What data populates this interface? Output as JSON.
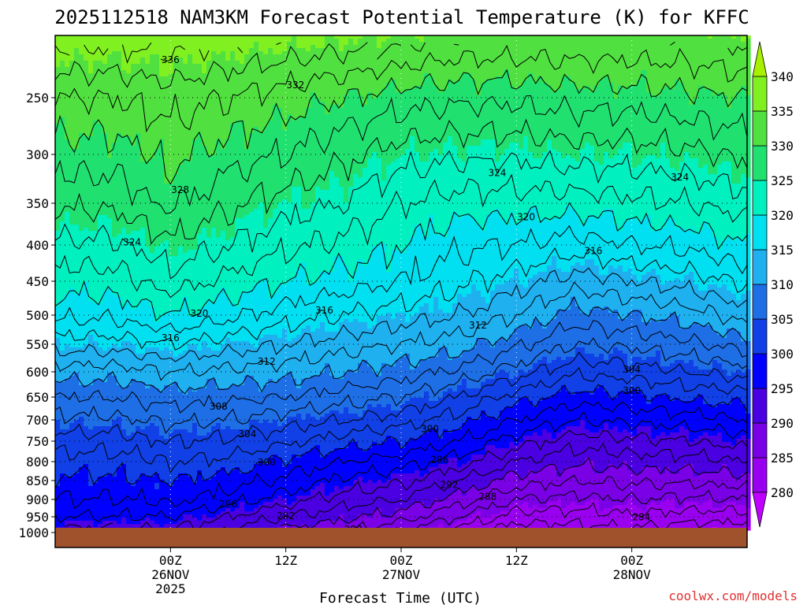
{
  "chart_data": {
    "type": "heatmap",
    "title": "2025112518 NAM3KM Forecast Potential Temperature (K) for KFFC",
    "xlabel": "Forecast Time (UTC)",
    "ylabel": "",
    "credit": "coolwx.com/models",
    "x_range_hours": [
      -6,
      66
    ],
    "y_range_hpa": [
      1000,
      200
    ],
    "grid": "dotted",
    "y_ticks": [
      {
        "value": 250,
        "label": "250"
      },
      {
        "value": 300,
        "label": "300"
      },
      {
        "value": 350,
        "label": "350"
      },
      {
        "value": 400,
        "label": "400"
      },
      {
        "value": 450,
        "label": "450"
      },
      {
        "value": 500,
        "label": "500"
      },
      {
        "value": 550,
        "label": "550"
      },
      {
        "value": 600,
        "label": "600"
      },
      {
        "value": 650,
        "label": "650"
      },
      {
        "value": 700,
        "label": "700"
      },
      {
        "value": 750,
        "label": "750"
      },
      {
        "value": 800,
        "label": "800"
      },
      {
        "value": 850,
        "label": "850"
      },
      {
        "value": 900,
        "label": "900"
      },
      {
        "value": 950,
        "label": "950"
      },
      {
        "value": 1000,
        "label": "1000"
      }
    ],
    "x_ticks": [
      {
        "hour": 6,
        "lines": [
          "00Z",
          "26NOV",
          "2025"
        ]
      },
      {
        "hour": 18,
        "lines": [
          "12Z"
        ]
      },
      {
        "hour": 30,
        "lines": [
          "00Z",
          "27NOV"
        ]
      },
      {
        "hour": 42,
        "lines": [
          "12Z"
        ]
      },
      {
        "hour": 54,
        "lines": [
          "00Z",
          "28NOV"
        ]
      }
    ],
    "colorbar": {
      "levels": [
        280,
        285,
        290,
        295,
        300,
        305,
        310,
        315,
        320,
        325,
        330,
        335,
        340
      ],
      "labels": [
        "280",
        "285",
        "290",
        "295",
        "300",
        "305",
        "310",
        "315",
        "320",
        "325",
        "330",
        "335",
        "340"
      ],
      "colors": [
        "#c000ff",
        "#9a00f0",
        "#7a00e6",
        "#4a00e0",
        "#0000ff",
        "#1040e6",
        "#1e6ee6",
        "#1fb0f0",
        "#00e0f0",
        "#00f0c0",
        "#20e070",
        "#50e040",
        "#80f020",
        "#a6f000"
      ]
    },
    "theta_profiles": [
      {
        "hour": 0,
        "levels": [
          [
            1000,
            293
          ],
          [
            950,
            296
          ],
          [
            900,
            298
          ],
          [
            850,
            299.5
          ],
          [
            800,
            301
          ],
          [
            750,
            303
          ],
          [
            700,
            305.5
          ],
          [
            650,
            308
          ],
          [
            600,
            311
          ],
          [
            550,
            315
          ],
          [
            500,
            318.5
          ],
          [
            450,
            321
          ],
          [
            400,
            323.5
          ],
          [
            350,
            326.5
          ],
          [
            300,
            329
          ],
          [
            250,
            332
          ],
          [
            200,
            337
          ]
        ]
      },
      {
        "hour": 6,
        "levels": [
          [
            1000,
            293.5
          ],
          [
            950,
            296
          ],
          [
            900,
            298.5
          ],
          [
            850,
            300
          ],
          [
            800,
            302
          ],
          [
            750,
            304
          ],
          [
            700,
            306.5
          ],
          [
            650,
            309
          ],
          [
            600,
            312
          ],
          [
            550,
            316
          ],
          [
            500,
            320
          ],
          [
            450,
            323
          ],
          [
            400,
            325.5
          ],
          [
            350,
            328.5
          ],
          [
            300,
            330.5
          ],
          [
            250,
            333
          ],
          [
            200,
            337
          ]
        ]
      },
      {
        "hour": 12,
        "levels": [
          [
            1000,
            291.5
          ],
          [
            950,
            294
          ],
          [
            900,
            297
          ],
          [
            850,
            299
          ],
          [
            800,
            301.5
          ],
          [
            750,
            303.5
          ],
          [
            700,
            306
          ],
          [
            650,
            308.5
          ],
          [
            600,
            311.5
          ],
          [
            550,
            315
          ],
          [
            500,
            318.5
          ],
          [
            450,
            321.5
          ],
          [
            400,
            324
          ],
          [
            350,
            326.5
          ],
          [
            300,
            329
          ],
          [
            250,
            332
          ],
          [
            200,
            336.5
          ]
        ]
      },
      {
        "hour": 18,
        "levels": [
          [
            1000,
            289
          ],
          [
            950,
            292
          ],
          [
            900,
            295
          ],
          [
            850,
            297.5
          ],
          [
            800,
            299.5
          ],
          [
            750,
            302.5
          ],
          [
            700,
            305
          ],
          [
            650,
            308
          ],
          [
            600,
            311
          ],
          [
            550,
            314
          ],
          [
            500,
            317
          ],
          [
            450,
            320
          ],
          [
            400,
            322.5
          ],
          [
            350,
            325
          ],
          [
            300,
            328
          ],
          [
            250,
            331
          ],
          [
            200,
            336
          ]
        ]
      },
      {
        "hour": 24,
        "levels": [
          [
            1000,
            288
          ],
          [
            950,
            290.5
          ],
          [
            900,
            293
          ],
          [
            850,
            295.5
          ],
          [
            800,
            298
          ],
          [
            750,
            301
          ],
          [
            700,
            304
          ],
          [
            650,
            307
          ],
          [
            600,
            310
          ],
          [
            550,
            313
          ],
          [
            500,
            316
          ],
          [
            450,
            319
          ],
          [
            400,
            321.5
          ],
          [
            350,
            324
          ],
          [
            300,
            326.5
          ],
          [
            250,
            330
          ],
          [
            200,
            335.5
          ]
        ]
      },
      {
        "hour": 30,
        "levels": [
          [
            1000,
            285.5
          ],
          [
            950,
            289
          ],
          [
            900,
            292
          ],
          [
            850,
            294.5
          ],
          [
            800,
            297
          ],
          [
            750,
            300
          ],
          [
            700,
            303
          ],
          [
            650,
            306
          ],
          [
            600,
            309
          ],
          [
            550,
            312
          ],
          [
            500,
            315
          ],
          [
            450,
            318
          ],
          [
            400,
            320
          ],
          [
            350,
            322
          ],
          [
            300,
            325
          ],
          [
            250,
            329
          ],
          [
            200,
            335
          ]
        ]
      },
      {
        "hour": 36,
        "levels": [
          [
            1000,
            283
          ],
          [
            950,
            286
          ],
          [
            900,
            289
          ],
          [
            850,
            292
          ],
          [
            800,
            295
          ],
          [
            750,
            298
          ],
          [
            700,
            301
          ],
          [
            650,
            304
          ],
          [
            600,
            307.5
          ],
          [
            550,
            311
          ],
          [
            500,
            314
          ],
          [
            450,
            316.5
          ],
          [
            400,
            318.5
          ],
          [
            350,
            321
          ],
          [
            300,
            324.5
          ],
          [
            250,
            328.5
          ],
          [
            200,
            334
          ]
        ]
      },
      {
        "hour": 42,
        "levels": [
          [
            1000,
            280.5
          ],
          [
            950,
            283
          ],
          [
            900,
            286
          ],
          [
            850,
            289
          ],
          [
            800,
            292
          ],
          [
            750,
            295
          ],
          [
            700,
            298
          ],
          [
            650,
            301
          ],
          [
            600,
            305
          ],
          [
            550,
            308.5
          ],
          [
            500,
            312
          ],
          [
            450,
            315
          ],
          [
            400,
            318
          ],
          [
            350,
            321
          ],
          [
            300,
            324.5
          ],
          [
            250,
            328.5
          ],
          [
            200,
            334
          ]
        ]
      },
      {
        "hour": 48,
        "levels": [
          [
            1000,
            280.5
          ],
          [
            950,
            283
          ],
          [
            900,
            285.5
          ],
          [
            850,
            288
          ],
          [
            800,
            290.5
          ],
          [
            750,
            293
          ],
          [
            700,
            296
          ],
          [
            650,
            299
          ],
          [
            600,
            302.5
          ],
          [
            550,
            306
          ],
          [
            500,
            309
          ],
          [
            450,
            313
          ],
          [
            400,
            317
          ],
          [
            350,
            321
          ],
          [
            300,
            325
          ],
          [
            250,
            329
          ],
          [
            200,
            334
          ]
        ]
      },
      {
        "hour": 54,
        "levels": [
          [
            1000,
            281.5
          ],
          [
            950,
            283.5
          ],
          [
            900,
            286
          ],
          [
            850,
            288.5
          ],
          [
            800,
            291
          ],
          [
            750,
            293.5
          ],
          [
            700,
            296.5
          ],
          [
            650,
            299.5
          ],
          [
            600,
            303
          ],
          [
            550,
            306.5
          ],
          [
            500,
            310
          ],
          [
            450,
            314
          ],
          [
            400,
            318
          ],
          [
            350,
            321.5
          ],
          [
            300,
            325
          ],
          [
            250,
            329
          ],
          [
            200,
            334
          ]
        ]
      },
      {
        "hour": 60,
        "levels": [
          [
            1000,
            280.5
          ],
          [
            950,
            283
          ],
          [
            900,
            285.5
          ],
          [
            850,
            288.5
          ],
          [
            800,
            291
          ],
          [
            750,
            294
          ],
          [
            700,
            297
          ],
          [
            650,
            300.5
          ],
          [
            600,
            304
          ],
          [
            550,
            307.5
          ],
          [
            500,
            311
          ],
          [
            450,
            315
          ],
          [
            400,
            318.5
          ],
          [
            350,
            322
          ],
          [
            300,
            325.5
          ],
          [
            250,
            329.5
          ],
          [
            200,
            334
          ]
        ]
      },
      {
        "hour": 66,
        "levels": [
          [
            1000,
            280
          ],
          [
            950,
            283
          ],
          [
            900,
            286
          ],
          [
            850,
            289
          ],
          [
            800,
            292
          ],
          [
            750,
            295
          ],
          [
            700,
            298
          ],
          [
            650,
            301
          ],
          [
            600,
            305
          ],
          [
            550,
            309
          ],
          [
            500,
            313
          ],
          [
            450,
            316.5
          ],
          [
            400,
            320
          ],
          [
            350,
            323
          ],
          [
            300,
            326.5
          ],
          [
            250,
            330
          ],
          [
            200,
            335
          ]
        ]
      }
    ],
    "contour_labels": [
      {
        "text": "336",
        "hour": 6,
        "value": 336
      },
      {
        "text": "332",
        "hour": 19,
        "value": 332
      },
      {
        "text": "328",
        "hour": 7,
        "value": 328
      },
      {
        "text": "324",
        "hour": 2,
        "value": 324
      },
      {
        "text": "324",
        "hour": 40,
        "value": 324
      },
      {
        "text": "324",
        "hour": 59,
        "value": 324
      },
      {
        "text": "320",
        "hour": 9,
        "value": 320
      },
      {
        "text": "320",
        "hour": 43,
        "value": 320
      },
      {
        "text": "316",
        "hour": 6,
        "value": 316
      },
      {
        "text": "316",
        "hour": 22,
        "value": 316
      },
      {
        "text": "316",
        "hour": 50,
        "value": 316
      },
      {
        "text": "312",
        "hour": 16,
        "value": 312
      },
      {
        "text": "312",
        "hour": 38,
        "value": 312
      },
      {
        "text": "308",
        "hour": 11,
        "value": 308
      },
      {
        "text": "304",
        "hour": 14,
        "value": 304
      },
      {
        "text": "304",
        "hour": 54,
        "value": 304
      },
      {
        "text": "300",
        "hour": 16,
        "value": 300
      },
      {
        "text": "300",
        "hour": 33,
        "value": 300
      },
      {
        "text": "300",
        "hour": 54,
        "value": 300
      },
      {
        "text": "296",
        "hour": 12,
        "value": 296
      },
      {
        "text": "296",
        "hour": 34,
        "value": 296
      },
      {
        "text": "292",
        "hour": 18,
        "value": 292
      },
      {
        "text": "292",
        "hour": 35,
        "value": 292
      },
      {
        "text": "288",
        "hour": 25,
        "value": 288
      },
      {
        "text": "288",
        "hour": 39,
        "value": 288
      },
      {
        "text": "284",
        "hour": 55,
        "value": 284
      },
      {
        "text": "280",
        "hour": 45,
        "value": 280
      }
    ],
    "ground_color": "#a0522d"
  }
}
